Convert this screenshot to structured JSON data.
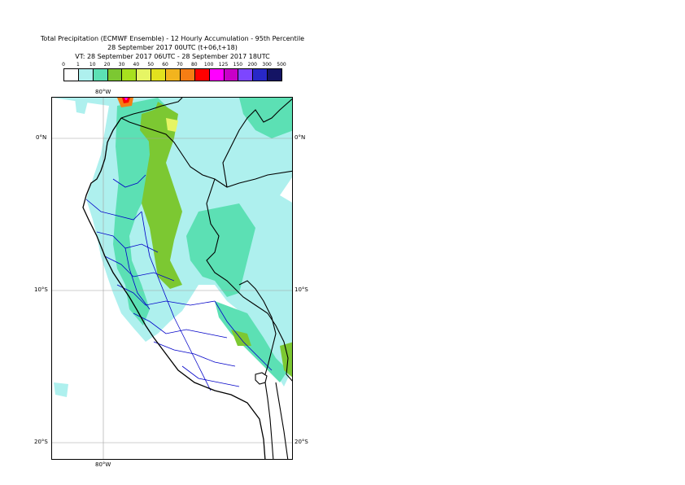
{
  "title": {
    "line1": "Total Precipitation (ECMWF Ensemble) - 12 Hourly Accumulation - 95th Percentile",
    "line2": "28 September 2017 00UTC (t+06,t+18)",
    "line3": "VT: 28 September 2017 06UTC - 28 September 2017 18UTC"
  },
  "legend": {
    "ticks": [
      "0",
      "1",
      "10",
      "20",
      "30",
      "40",
      "50",
      "60",
      "70",
      "80",
      "100",
      "125",
      "150",
      "200",
      "300",
      "500"
    ],
    "colors": [
      "#ffffff",
      "#aef0ee",
      "#5ce0b4",
      "#7cc832",
      "#a8e01e",
      "#e6f564",
      "#e2e21e",
      "#f2b41e",
      "#f57d14",
      "#ff0000",
      "#ff00ff",
      "#c800c8",
      "#7d46ff",
      "#2828c8",
      "#141464"
    ]
  },
  "map": {
    "lon_labels": {
      "top": "80°W",
      "bottom": "80°W"
    },
    "lat_labels": {
      "equator": "0°N",
      "ten_south": "10°S",
      "twenty_south": "20°S"
    },
    "colors": {
      "lightest": "#aef0ee",
      "light": "#5ce0b4",
      "medium": "#7cc832",
      "yellow": "#e6f564",
      "orange": "#f57d14",
      "red": "#ff0000",
      "magenta": "#ff00ff",
      "country_border": "#000000",
      "admin_border": "#0000c8",
      "gridline": "#a0a0a0"
    }
  }
}
